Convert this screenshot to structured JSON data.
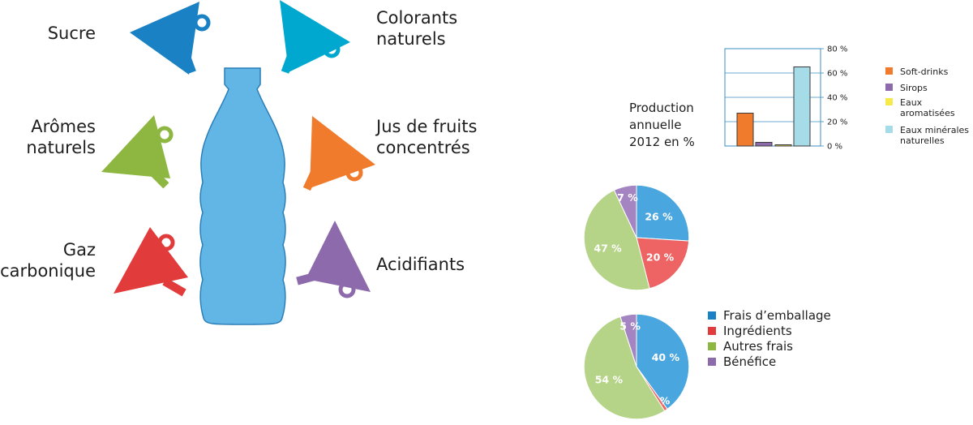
{
  "infographic": {
    "ingredients": [
      {
        "label_lines": [
          "Sucre"
        ],
        "color": "#1a82c4"
      },
      {
        "label_lines": [
          "Colorants",
          "naturels"
        ],
        "color": "#00a8cf"
      },
      {
        "label_lines": [
          "Arômes",
          "naturels"
        ],
        "color": "#8db741"
      },
      {
        "label_lines": [
          "Jus de fruits",
          "concentrés"
        ],
        "color": "#f07b2c"
      },
      {
        "label_lines": [
          "Gaz",
          "carbonique"
        ],
        "color": "#e23b3b"
      },
      {
        "label_lines": [
          "Acidifiants"
        ],
        "color": "#8c6aac"
      }
    ],
    "bottle_color": "#62b6e6"
  },
  "production_caption_lines": [
    "Production",
    "annuelle",
    "2012 en %"
  ],
  "chart_data": [
    {
      "type": "bar",
      "categories": [
        "Soft-drinks",
        "Sirops",
        "Eaux aromatisées",
        "Eaux minérales naturelles"
      ],
      "legend_lines": [
        [
          "Soft-drinks"
        ],
        [
          "Sirops"
        ],
        [
          "Eaux",
          "aromatisées"
        ],
        [
          "Eaux minérales",
          "naturelles"
        ]
      ],
      "values": [
        27,
        3,
        1,
        65
      ],
      "colors": [
        "#f07b2c",
        "#8c6aac",
        "#f5e94c",
        "#a6dce8"
      ],
      "ylim": [
        0,
        80
      ],
      "yticks": [
        0,
        20,
        40,
        60,
        80
      ],
      "ytick_labels": [
        "0 %",
        "20 %",
        "40 %",
        "60 %",
        "80 %"
      ],
      "grid": true,
      "legend": "right"
    },
    {
      "type": "pie",
      "values": [
        26,
        20,
        47,
        7
      ],
      "labels": [
        "26 %",
        "20 %",
        "47 %",
        "7 %"
      ],
      "colors": [
        "#4aa6de",
        "#ee6464",
        "#b5d487",
        "#a584c2"
      ]
    },
    {
      "type": "pie",
      "categories": [
        "Frais d’emballage",
        "Ingrédients",
        "Autres frais",
        "Bénéfice"
      ],
      "values": [
        40,
        1,
        54,
        5
      ],
      "labels": [
        "40 %",
        "1 %",
        "54 %",
        "5 %"
      ],
      "colors": [
        "#4aa6de",
        "#ee6464",
        "#b5d487",
        "#a584c2"
      ],
      "legend_colors": [
        "#1a82c4",
        "#e23b3b",
        "#8db741",
        "#8c6aac"
      ],
      "legend": "top-right"
    }
  ]
}
